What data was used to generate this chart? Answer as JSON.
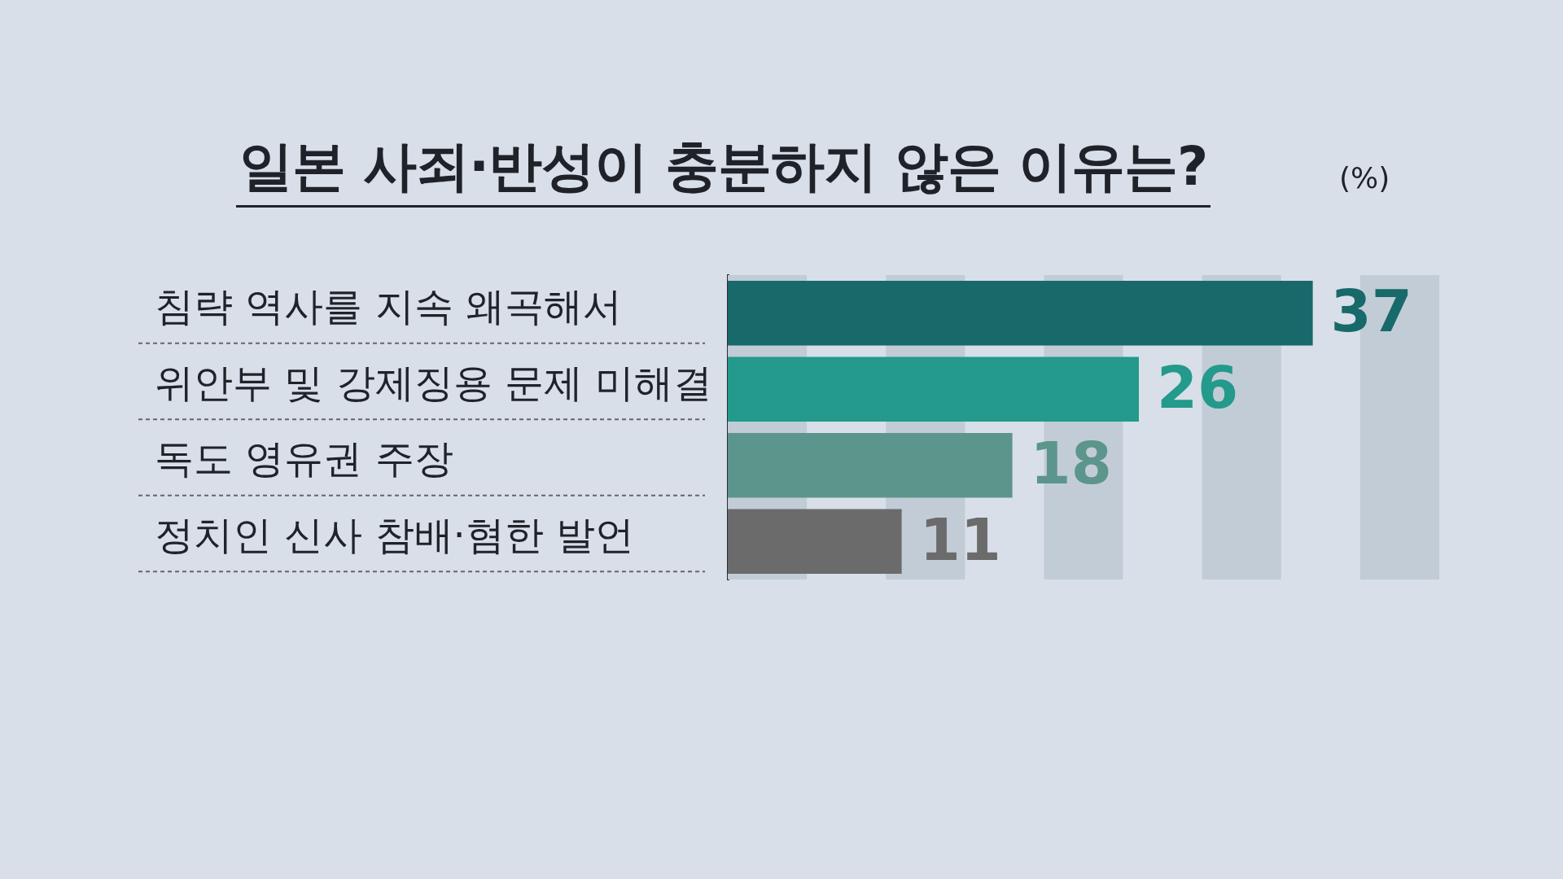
{
  "chart_data": {
    "type": "bar",
    "orientation": "horizontal",
    "title": "일본 사죄·반성이 충분하지 않은 이유는?",
    "subtitle": "(%)",
    "categories": [
      "침략 역사를 지속 왜곡해서",
      "위안부 및 강제징용 문제 미해결",
      "독도 영유권 주장",
      "정치인 신사 참배·혐한 발언"
    ],
    "values": [
      37,
      26,
      18,
      11
    ],
    "colors": [
      "#17696a",
      "#239a8b",
      "#5c958b",
      "#6b6b6b"
    ],
    "data_labels": true,
    "xlim": [
      0,
      45
    ],
    "tick_labels": "y",
    "grid": false,
    "legend": false,
    "bands": [
      {
        "axis": "x",
        "from": 0,
        "to": 5,
        "color": "#c2ccd6"
      },
      {
        "axis": "x",
        "from": 10,
        "to": 15,
        "color": "#c2ccd6"
      },
      {
        "axis": "x",
        "from": 20,
        "to": 25,
        "color": "#c2ccd6"
      },
      {
        "axis": "x",
        "from": 30,
        "to": 35,
        "color": "#c2ccd6"
      },
      {
        "axis": "x",
        "from": 40,
        "to": 45,
        "color": "#c2ccd6"
      }
    ]
  }
}
